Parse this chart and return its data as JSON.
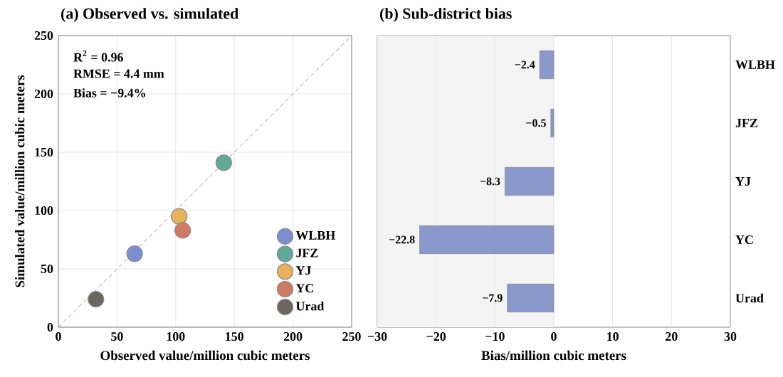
{
  "chart_data": [
    {
      "type": "scatter",
      "title": "(a) Observed vs. simulated",
      "xlabel": "Observed value/million cubic meters",
      "ylabel": "Simulated value/million cubic meters",
      "xlim": [
        0,
        250
      ],
      "ylim": [
        0,
        250
      ],
      "xticks": [
        0,
        50,
        100,
        150,
        200,
        250
      ],
      "yticks": [
        0,
        50,
        100,
        150,
        200,
        250
      ],
      "grid": true,
      "legend": "bottom right",
      "annotations": [
        "R$^{2}$ = 0.96",
        "RMSE = 4.4 mm",
        "Bias = −9.4%"
      ],
      "series": [
        {
          "type": "line",
          "line_style": "dashed",
          "marker": "none",
          "color": "#808080",
          "x": [
            0,
            250
          ],
          "values": [
            0,
            250
          ]
        },
        {
          "name": "WLBH",
          "marker": "circle",
          "color": "#7b8fd0",
          "x": [
            65
          ],
          "values": [
            63
          ]
        },
        {
          "name": "JFZ",
          "marker": "circle",
          "color": "#5fa89a",
          "x": [
            141
          ],
          "values": [
            141
          ]
        },
        {
          "name": "YJ",
          "marker": "circle",
          "color": "#e8b25a",
          "x": [
            103
          ],
          "values": [
            95
          ]
        },
        {
          "name": "YC",
          "marker": "circle",
          "color": "#cf7a62",
          "x": [
            106
          ],
          "values": [
            83
          ]
        },
        {
          "name": "Urad",
          "marker": "circle",
          "color": "#6e665c",
          "x": [
            32
          ],
          "values": [
            24
          ]
        }
      ]
    },
    {
      "type": "bar",
      "orientation": "horizontal",
      "title": "(b) Sub-district bias",
      "xlabel": "Bias/million cubic meters",
      "xlim": [
        -30,
        30
      ],
      "xticks": [
        {
          "value": -30,
          "label": "−30"
        },
        {
          "value": -20,
          "label": "−20"
        },
        {
          "value": -10,
          "label": "−10"
        },
        0,
        10,
        20,
        30
      ],
      "grid": "x",
      "color": "#8a98cc",
      "categories": [
        "WLBH",
        "JFZ",
        "YJ",
        "YC",
        "Urad"
      ],
      "values": [
        -2.4,
        -0.5,
        -8.3,
        -22.8,
        -7.9
      ],
      "value_labels": [
        "−2.4",
        "−0.5",
        "−8.3",
        "−22.8",
        "−7.9"
      ],
      "bands": [
        {
          "axis": "x",
          "from": -30,
          "to": 0,
          "color": "#f4f4f4"
        }
      ]
    }
  ]
}
